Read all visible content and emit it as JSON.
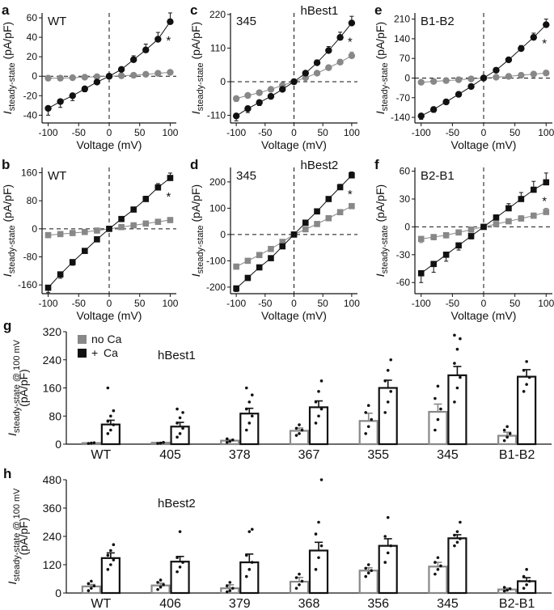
{
  "chart_data": [
    {
      "type": "line",
      "panel_letter": "a",
      "label": "WT",
      "marker": "circle",
      "sig": "*",
      "xlabel": "Voltage (mV)",
      "ylabel_main": "I",
      "ylabel_sub": "steady-state",
      "ylabel_unit": " (pA/pF)",
      "xlim": [
        -110,
        110
      ],
      "ylim": [
        -48,
        65
      ],
      "xticks": [
        -100,
        -50,
        0,
        50,
        100
      ],
      "yticks": [
        -40,
        -20,
        0,
        20,
        40,
        60
      ],
      "x": [
        -100,
        -80,
        -60,
        -40,
        -20,
        0,
        20,
        40,
        60,
        80,
        100
      ],
      "series": [
        {
          "name": "no Ca",
          "color": "#888888",
          "values": [
            -2,
            -2,
            -1.5,
            -1,
            -0.5,
            0,
            0.5,
            1,
            2,
            3,
            4
          ],
          "err": [
            1.5,
            1.5,
            1,
            1,
            0.5,
            0.5,
            0.5,
            1,
            1,
            1.5,
            2
          ]
        },
        {
          "name": "+ Ca",
          "color": "#111111",
          "values": [
            -33,
            -26,
            -20,
            -13,
            -6,
            0,
            7,
            17,
            27,
            38,
            56
          ],
          "err": [
            7,
            6,
            5,
            3,
            2,
            1,
            2,
            4,
            6,
            7,
            9
          ]
        }
      ]
    },
    {
      "type": "line",
      "panel_letter": "c",
      "label": "345",
      "title": "hBest1",
      "marker": "circle",
      "sig": "*",
      "xlabel": "Voltage (mV)",
      "ylabel_main": "I",
      "ylabel_sub": "steady-state",
      "ylabel_unit": " (pA/pF)",
      "xlim": [
        -110,
        110
      ],
      "ylim": [
        -135,
        225
      ],
      "xticks": [
        -100,
        -50,
        0,
        50,
        100
      ],
      "yticks": [
        -110,
        0,
        110,
        220
      ],
      "x": [
        -100,
        -80,
        -60,
        -40,
        -20,
        0,
        20,
        40,
        60,
        80,
        100
      ],
      "series": [
        {
          "name": "no Ca",
          "color": "#888888",
          "values": [
            -55,
            -45,
            -36,
            -25,
            -12,
            0,
            13,
            28,
            46,
            64,
            85
          ],
          "err": [
            10,
            8,
            7,
            5,
            3,
            2,
            3,
            5,
            7,
            9,
            12
          ]
        },
        {
          "name": "+ Ca",
          "color": "#111111",
          "values": [
            -112,
            -88,
            -68,
            -48,
            -25,
            0,
            28,
            62,
            102,
            145,
            192
          ],
          "err": [
            16,
            13,
            10,
            7,
            4,
            2,
            5,
            9,
            13,
            17,
            22
          ]
        }
      ]
    },
    {
      "type": "line",
      "panel_letter": "e",
      "label": "B1-B2",
      "marker": "circle",
      "sig": "*",
      "xlabel": "Voltage (mV)",
      "ylabel_main": "I",
      "ylabel_sub": "steady-state",
      "ylabel_unit": " (pA/pF)",
      "xlim": [
        -110,
        110
      ],
      "ylim": [
        -160,
        232
      ],
      "xticks": [
        -100,
        -50,
        0,
        50,
        100
      ],
      "yticks": [
        -140,
        -70,
        0,
        70,
        140,
        210
      ],
      "x": [
        -100,
        -80,
        -60,
        -40,
        -20,
        0,
        20,
        40,
        60,
        80,
        100
      ],
      "series": [
        {
          "name": "no Ca",
          "color": "#888888",
          "values": [
            -15,
            -12,
            -9,
            -6,
            -3,
            0,
            3,
            6,
            10,
            14,
            18
          ],
          "err": [
            6,
            5,
            4,
            3,
            2,
            1,
            2,
            3,
            4,
            5,
            6
          ]
        },
        {
          "name": "+ Ca",
          "color": "#111111",
          "values": [
            -135,
            -112,
            -85,
            -58,
            -30,
            0,
            28,
            65,
            105,
            145,
            190
          ],
          "err": [
            12,
            10,
            8,
            6,
            4,
            2,
            4,
            7,
            11,
            15,
            20
          ]
        }
      ]
    },
    {
      "type": "line",
      "panel_letter": "b",
      "label": "WT",
      "marker": "square",
      "sig": "*",
      "xlabel": "Voltage (mV)",
      "ylabel_main": "I",
      "ylabel_sub": "steady-state",
      "ylabel_unit": " (pA/pF)",
      "xlim": [
        -110,
        110
      ],
      "ylim": [
        -185,
        175
      ],
      "xticks": [
        -100,
        -50,
        0,
        50,
        100
      ],
      "yticks": [
        -160,
        -80,
        0,
        80,
        160
      ],
      "x": [
        -100,
        -80,
        -60,
        -40,
        -20,
        0,
        20,
        40,
        60,
        80,
        100
      ],
      "series": [
        {
          "name": "no Ca",
          "color": "#888888",
          "values": [
            -18,
            -15,
            -12,
            -9,
            -5,
            0,
            5,
            10,
            15,
            20,
            25
          ],
          "err": [
            6,
            5,
            4,
            3,
            2,
            1,
            2,
            3,
            4,
            5,
            6
          ]
        },
        {
          "name": "+ Ca",
          "color": "#111111",
          "values": [
            -168,
            -130,
            -95,
            -63,
            -30,
            0,
            28,
            55,
            85,
            118,
            145
          ],
          "err": [
            14,
            11,
            9,
            6,
            3,
            2,
            3,
            5,
            8,
            11,
            14
          ]
        }
      ]
    },
    {
      "type": "line",
      "panel_letter": "d",
      "label": "345",
      "title": "hBest2",
      "marker": "square",
      "sig": "*",
      "xlabel": "Voltage (mV)",
      "ylabel_main": "I",
      "ylabel_sub": "steady-state",
      "ylabel_unit": " (pA/pF)",
      "xlim": [
        -110,
        110
      ],
      "ylim": [
        -225,
        255
      ],
      "xticks": [
        -100,
        -50,
        0,
        50,
        100
      ],
      "yticks": [
        -200,
        -100,
        0,
        100,
        200
      ],
      "x": [
        -100,
        -80,
        -60,
        -40,
        -20,
        0,
        20,
        40,
        60,
        80,
        100
      ],
      "series": [
        {
          "name": "no Ca",
          "color": "#888888",
          "values": [
            -122,
            -100,
            -78,
            -55,
            -28,
            0,
            20,
            40,
            62,
            85,
            108
          ],
          "err": [
            10,
            8,
            6,
            5,
            3,
            2,
            3,
            4,
            6,
            8,
            10
          ]
        },
        {
          "name": "+ Ca",
          "color": "#111111",
          "values": [
            -205,
            -165,
            -125,
            -90,
            -45,
            0,
            45,
            88,
            135,
            180,
            225
          ],
          "err": [
            12,
            10,
            8,
            6,
            4,
            2,
            4,
            6,
            9,
            11,
            13
          ]
        }
      ]
    },
    {
      "type": "line",
      "panel_letter": "f",
      "label": "B2-B1",
      "marker": "square",
      "sig": "*",
      "xlabel": "Voltage (mV)",
      "ylabel_main": "I",
      "ylabel_sub": "steady-state",
      "ylabel_unit": " (pA/pF)",
      "xlim": [
        -110,
        110
      ],
      "ylim": [
        -72,
        64
      ],
      "xticks": [
        -100,
        -50,
        0,
        50,
        100
      ],
      "yticks": [
        -60,
        -30,
        0,
        30,
        60
      ],
      "x": [
        -100,
        -80,
        -60,
        -40,
        -20,
        0,
        20,
        40,
        60,
        80,
        100
      ],
      "series": [
        {
          "name": "no Ca",
          "color": "#888888",
          "values": [
            -13,
            -11,
            -9,
            -6,
            -3,
            0,
            3,
            6,
            9,
            12,
            16
          ],
          "err": [
            4,
            3,
            3,
            2,
            1,
            1,
            1,
            2,
            3,
            3,
            4
          ]
        },
        {
          "name": "+ Ca",
          "color": "#111111",
          "values": [
            -50,
            -40,
            -30,
            -20,
            -10,
            0,
            10,
            20,
            30,
            40,
            48
          ],
          "err": [
            10,
            9,
            7,
            5,
            3,
            1,
            3,
            5,
            7,
            9,
            10
          ]
        }
      ]
    },
    {
      "type": "bar",
      "panel_letter": "g",
      "title": "hBest1",
      "ylabel_main": "I",
      "ylabel_sub": "steady-state @ 100 mV",
      "ylabel_unit": "(pA/pF)",
      "ylim": [
        0,
        320
      ],
      "yticks": [
        0,
        80,
        160,
        240,
        320
      ],
      "legend": [
        {
          "swatch": "#888888",
          "sign": "",
          "text": "no Ca"
        },
        {
          "swatch": "#111111",
          "sign": "+",
          "text": "Ca"
        }
      ],
      "categories": [
        "WT",
        "405",
        "378",
        "367",
        "355",
        "345",
        "B1-B2"
      ],
      "series": [
        {
          "name": "no Ca",
          "color": "#888888",
          "values": [
            3,
            4,
            10,
            38,
            66,
            92,
            24
          ],
          "err": [
            1,
            1,
            3,
            8,
            22,
            22,
            10
          ],
          "points": [
            [
              2,
              3,
              4
            ],
            [
              2,
              3,
              5
            ],
            [
              5,
              8,
              12,
              15
            ],
            [
              25,
              30,
              40,
              45,
              55
            ],
            [
              30,
              50,
              70,
              90,
              110
            ],
            [
              40,
              70,
              100,
              130,
              165
            ],
            [
              10,
              20,
              30,
              40,
              50
            ]
          ]
        },
        {
          "name": "+ Ca",
          "color": "#111111",
          "values": [
            56,
            50,
            87,
            105,
            160,
            196,
            192
          ],
          "err": [
            12,
            12,
            15,
            18,
            22,
            25,
            20
          ],
          "points": [
            [
              30,
              40,
              55,
              65,
              80,
              95,
              160
            ],
            [
              20,
              30,
              45,
              60,
              75,
              90,
              100
            ],
            [
              40,
              60,
              80,
              100,
              120,
              140,
              160
            ],
            [
              60,
              80,
              100,
              120,
              150,
              180
            ],
            [
              90,
              120,
              150,
              180,
              210,
              240
            ],
            [
              120,
              160,
              190,
              230,
              270,
              300,
              310
            ],
            [
              150,
              170,
              190,
              210,
              235
            ]
          ]
        }
      ]
    },
    {
      "type": "bar",
      "panel_letter": "h",
      "title": "hBest2",
      "ylabel_main": "I",
      "ylabel_sub": "steady-state @ 100 mV",
      "ylabel_unit": "(pA/pF)",
      "ylim": [
        0,
        480
      ],
      "yticks": [
        0,
        120,
        240,
        360,
        480
      ],
      "categories": [
        "WT",
        "406",
        "379",
        "368",
        "356",
        "345",
        "B2-B1"
      ],
      "series": [
        {
          "name": "no Ca",
          "color": "#888888",
          "values": [
            28,
            32,
            20,
            48,
            95,
            112,
            15
          ],
          "err": [
            8,
            10,
            15,
            18,
            12,
            18,
            6
          ],
          "points": [
            [
              10,
              20,
              30,
              40,
              50
            ],
            [
              15,
              25,
              35,
              45,
              55
            ],
            [
              5,
              10,
              20,
              30,
              45
            ],
            [
              20,
              35,
              50,
              65,
              80
            ],
            [
              70,
              85,
              95,
              105,
              120
            ],
            [
              80,
              100,
              115,
              130,
              150
            ],
            [
              8,
              12,
              18,
              24
            ]
          ]
        },
        {
          "name": "+ Ca",
          "color": "#111111",
          "values": [
            148,
            133,
            130,
            180,
            200,
            232,
            50
          ],
          "err": [
            22,
            22,
            35,
            35,
            30,
            15,
            15
          ],
          "points": [
            [
              100,
              120,
              140,
              160,
              180,
              205
            ],
            [
              90,
              110,
              130,
              150,
              260
            ],
            [
              70,
              100,
              130,
              160,
              260,
              270
            ],
            [
              100,
              150,
              200,
              250,
              300,
              480
            ],
            [
              130,
              170,
              200,
              240,
              320
            ],
            [
              200,
              215,
              230,
              245,
              260,
              300
            ],
            [
              20,
              35,
              50,
              70,
              100
            ]
          ]
        }
      ]
    }
  ]
}
